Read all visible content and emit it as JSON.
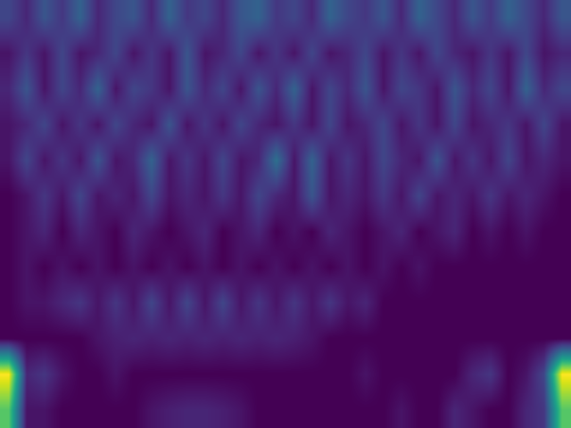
{
  "chart_data": {
    "type": "heatmap",
    "tick_labels": false,
    "cells": [
      [
        0.2,
        0.1,
        0.25,
        0.15,
        0.3,
        0.1,
        0.2,
        0.25,
        0.1,
        0.3,
        0.15,
        0.2,
        0.1,
        0.25,
        0.3,
        0.15,
        0.2,
        0.1,
        0.3,
        0.2,
        0.15,
        0.25,
        0.1,
        0.3,
        0.2,
        0.1,
        0.25,
        0.15,
        0.3,
        0.2,
        0.1,
        0.25
      ],
      [
        0.05,
        0.15,
        0.05,
        0.2,
        0.05,
        0.1,
        0.2,
        0.05,
        0.15,
        0.05,
        0.25,
        0.05,
        0.1,
        0.2,
        0.05,
        0.15,
        0.05,
        0.2,
        0.05,
        0.1,
        0.2,
        0.05,
        0.15,
        0.05,
        0.2,
        0.1,
        0.05,
        0.15,
        0.05,
        0.2,
        0.05,
        0.1
      ],
      [
        0.1,
        0.25,
        0.05,
        0.2,
        0.1,
        0.3,
        0.05,
        0.2,
        0.15,
        0.05,
        0.25,
        0.1,
        0.2,
        0.05,
        0.25,
        0.1,
        0.3,
        0.05,
        0.2,
        0.1,
        0.25,
        0.05,
        0.2,
        0.15,
        0.05,
        0.25,
        0.1,
        0.2,
        0.05,
        0.3,
        0.1,
        0.2
      ],
      [
        0.05,
        0.1,
        0.2,
        0.05,
        0.15,
        0.05,
        0.2,
        0.1,
        0.05,
        0.25,
        0.05,
        0.15,
        0.05,
        0.2,
        0.1,
        0.05,
        0.15,
        0.05,
        0.2,
        0.05,
        0.1,
        0.2,
        0.05,
        0.15,
        0.05,
        0.2,
        0.05,
        0.1,
        0.15,
        0.05,
        0.2,
        0.05
      ],
      [
        0.05,
        0.2,
        0.05,
        0.15,
        0.05,
        0.25,
        0.05,
        0.1,
        0.3,
        0.05,
        0.15,
        0.05,
        0.2,
        0.05,
        0.1,
        0.35,
        0.05,
        0.3,
        0.05,
        0.15,
        0.05,
        0.2,
        0.1,
        0.05,
        0.25,
        0.05,
        0.15,
        0.05,
        0.2,
        0.05,
        0.1,
        0.05
      ],
      [
        0.0,
        0.05,
        0.15,
        0.05,
        0.2,
        0.05,
        0.1,
        0.05,
        0.2,
        0.05,
        0.1,
        0.05,
        0.15,
        0.05,
        0.2,
        0.1,
        0.05,
        0.25,
        0.05,
        0.1,
        0.05,
        0.15,
        0.05,
        0.2,
        0.05,
        0.1,
        0.05,
        0.15,
        0.05,
        0.1,
        0.05,
        0.0
      ],
      [
        0.0,
        0.05,
        0.1,
        0.0,
        0.1,
        0.05,
        0.0,
        0.1,
        0.05,
        0.0,
        0.05,
        0.1,
        0.0,
        0.05,
        0.1,
        0.0,
        0.05,
        0.0,
        0.1,
        0.05,
        0.0,
        0.05,
        0.1,
        0.0,
        0.05,
        0.1,
        0.0,
        0.05,
        0.0,
        0.05,
        0.0,
        0.0
      ],
      [
        0.0,
        0.05,
        0.0,
        0.05,
        0.0,
        0.05,
        0.0,
        0.05,
        0.0,
        0.05,
        0.0,
        0.05,
        0.0,
        0.05,
        0.0,
        0.05,
        0.0,
        0.05,
        0.0,
        0.05,
        0.0,
        0.05,
        0.0,
        0.05,
        0.0,
        0.0,
        0.0,
        0.0,
        0.0,
        0.0,
        0.0,
        0.0
      ],
      [
        0.0,
        0.05,
        0.05,
        0.1,
        0.15,
        0.05,
        0.15,
        0.05,
        0.2,
        0.05,
        0.2,
        0.05,
        0.2,
        0.05,
        0.15,
        0.05,
        0.15,
        0.05,
        0.15,
        0.05,
        0.1,
        0.0,
        0.0,
        0.0,
        0.0,
        0.0,
        0.0,
        0.0,
        0.0,
        0.0,
        0.0,
        0.0
      ],
      [
        0.0,
        0.0,
        0.0,
        0.0,
        0.0,
        0.05,
        0.08,
        0.1,
        0.08,
        0.1,
        0.08,
        0.1,
        0.08,
        0.1,
        0.08,
        0.1,
        0.08,
        0.05,
        0.0,
        0.0,
        0.0,
        0.0,
        0.0,
        0.0,
        0.0,
        0.0,
        0.0,
        0.0,
        0.0,
        0.0,
        0.0,
        0.0
      ],
      [
        0.95,
        0.1,
        0.15,
        0.05,
        0.0,
        0.0,
        0.05,
        0.0,
        0.0,
        0.0,
        0.0,
        0.0,
        0.0,
        0.0,
        0.0,
        0.0,
        0.0,
        0.0,
        0.0,
        0.0,
        0.05,
        0.0,
        0.0,
        0.0,
        0.0,
        0.0,
        0.1,
        0.15,
        0.0,
        0.05,
        0.2,
        0.95
      ],
      [
        0.7,
        0.05,
        0.05,
        0.0,
        0.0,
        0.0,
        0.0,
        0.0,
        0.05,
        0.08,
        0.1,
        0.1,
        0.08,
        0.05,
        0.0,
        0.0,
        0.0,
        0.0,
        0.0,
        0.0,
        0.0,
        0.0,
        0.05,
        0.0,
        0.0,
        0.1,
        0.05,
        0.0,
        0.0,
        0.1,
        0.15,
        0.7
      ]
    ]
  }
}
